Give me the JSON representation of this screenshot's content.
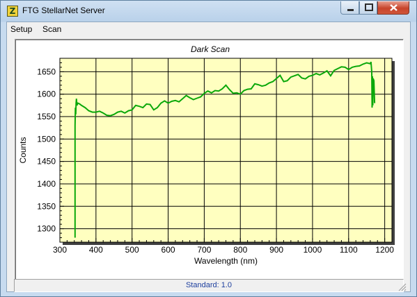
{
  "window": {
    "title": "FTG StellarNet Server",
    "icon": "stellarnet-app-icon",
    "controls": {
      "minimize": "minimize-icon",
      "maximize": "maximize-icon",
      "close": "close-icon"
    }
  },
  "menu": {
    "items": [
      {
        "label": "Setup"
      },
      {
        "label": "Scan"
      }
    ]
  },
  "statusbar": {
    "text": "Standard: 1.0"
  },
  "colors": {
    "plot_bg": "#ffffc0",
    "trace": "#0aa80a",
    "grid": "#000000"
  },
  "chart_data": {
    "type": "line",
    "title": "Dark Scan",
    "xlabel": "Wavelength (nm)",
    "ylabel": "Counts",
    "xlim": [
      300,
      1220
    ],
    "ylim": [
      1270,
      1680
    ],
    "xticks": [
      300,
      400,
      500,
      600,
      700,
      800,
      900,
      1000,
      1100,
      1200
    ],
    "yticks": [
      1300,
      1350,
      1400,
      1450,
      1500,
      1550,
      1600,
      1650
    ],
    "grid": true,
    "series": [
      {
        "x": [
          342,
          342,
          343,
          344,
          345,
          346,
          347,
          350,
          355,
          360,
          370,
          380,
          390,
          400,
          410,
          420,
          430,
          440,
          450,
          460,
          470,
          480,
          490,
          500,
          510,
          520,
          530,
          540,
          550,
          560,
          570,
          580,
          590,
          600,
          610,
          620,
          630,
          640,
          650,
          660,
          670,
          680,
          690,
          700,
          710,
          720,
          730,
          740,
          750,
          760,
          770,
          780,
          790,
          800,
          810,
          820,
          830,
          840,
          850,
          860,
          870,
          880,
          890,
          900,
          910,
          920,
          930,
          940,
          950,
          960,
          970,
          980,
          990,
          1000,
          1010,
          1020,
          1030,
          1040,
          1050,
          1060,
          1070,
          1080,
          1090,
          1100,
          1110,
          1120,
          1130,
          1140,
          1150,
          1160,
          1162,
          1164,
          1165,
          1166,
          1167,
          1168,
          1170,
          1172
        ],
        "y": [
          1280,
          1530,
          1570,
          1555,
          1580,
          1590,
          1575,
          1580,
          1578,
          1575,
          1570,
          1563,
          1560,
          1560,
          1562,
          1558,
          1553,
          1552,
          1555,
          1560,
          1562,
          1558,
          1563,
          1565,
          1575,
          1573,
          1570,
          1578,
          1577,
          1565,
          1570,
          1580,
          1585,
          1580,
          1584,
          1586,
          1583,
          1590,
          1597,
          1592,
          1588,
          1591,
          1594,
          1602,
          1607,
          1603,
          1608,
          1607,
          1612,
          1620,
          1610,
          1602,
          1603,
          1600,
          1608,
          1611,
          1612,
          1623,
          1621,
          1618,
          1620,
          1625,
          1628,
          1635,
          1642,
          1628,
          1630,
          1638,
          1641,
          1644,
          1636,
          1634,
          1640,
          1642,
          1646,
          1643,
          1647,
          1652,
          1641,
          1653,
          1657,
          1661,
          1660,
          1655,
          1660,
          1662,
          1663,
          1667,
          1670,
          1668,
          1672,
          1650,
          1570,
          1640,
          1575,
          1635,
          1630,
          1580
        ]
      }
    ]
  }
}
